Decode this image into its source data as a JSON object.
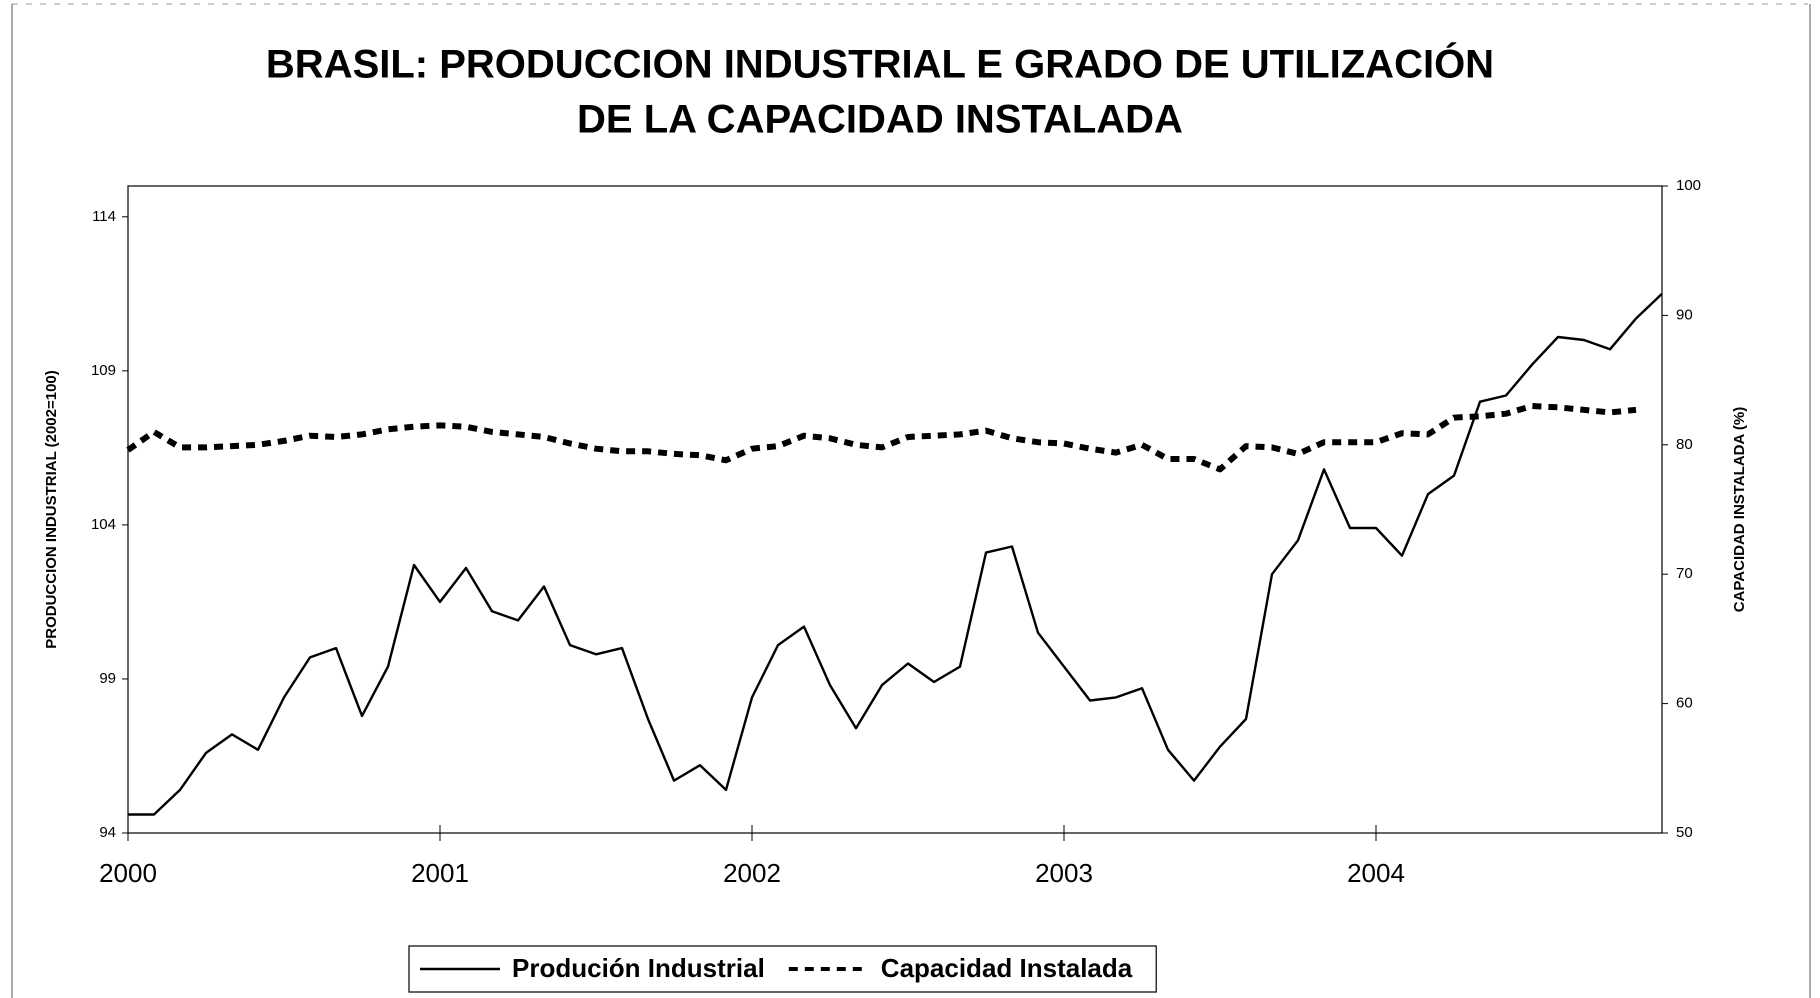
{
  "chart_data": {
    "type": "line",
    "title": [
      "BRASIL: PRODUCCION INDUSTRIAL E GRADO DE  UTILIZACIÓN",
      "DE LA CAPACIDAD INSTALADA"
    ],
    "ylabel": "PRODUCCION INDUSTRIAL (2002=100)",
    "y2label": "CAPACIDAD INSTALADA (%)",
    "categories": [
      "2000",
      null,
      null,
      null,
      null,
      null,
      null,
      null,
      null,
      null,
      null,
      null,
      "2001",
      null,
      null,
      null,
      null,
      null,
      null,
      null,
      null,
      null,
      null,
      null,
      "2002",
      null,
      null,
      null,
      null,
      null,
      null,
      null,
      null,
      null,
      null,
      null,
      "2003",
      null,
      null,
      null,
      null,
      null,
      null,
      null,
      null,
      null,
      null,
      null,
      "2004",
      null,
      null,
      null,
      null,
      null,
      null,
      null,
      null,
      null,
      null,
      null
    ],
    "series": [
      {
        "name": "Produción Industrial",
        "color": "#000000",
        "dash": "solid",
        "values": [
          94.6,
          94.6,
          95.4,
          96.6,
          97.2,
          96.7,
          98.4,
          99.7,
          100.0,
          97.8,
          99.4,
          102.7,
          101.5,
          102.6,
          101.2,
          100.9,
          102.0,
          100.1,
          99.8,
          100.0,
          97.7,
          95.7,
          96.2,
          95.4,
          98.4,
          100.1,
          100.7,
          98.8,
          97.4,
          98.8,
          99.5,
          98.9,
          99.4,
          103.1,
          103.3,
          100.5,
          99.4,
          98.3,
          98.4,
          98.7,
          96.7,
          95.7,
          96.8,
          97.7,
          102.4,
          103.5,
          105.8,
          103.9,
          103.9,
          103.0,
          105.0,
          105.6,
          108.0,
          108.2,
          109.2,
          110.1,
          110.0,
          109.7,
          110.7,
          111.5
        ]
      },
      {
        "name": "Capacidad Instalada",
        "color": "#000000",
        "dash": "dashed",
        "axis": "y2",
        "values": [
          79.6,
          81.0,
          79.8,
          79.8,
          79.9,
          80.0,
          80.3,
          80.7,
          80.6,
          80.8,
          81.2,
          81.4,
          81.5,
          81.4,
          81.0,
          80.8,
          80.6,
          80.1,
          79.7,
          79.5,
          79.5,
          79.3,
          79.2,
          78.8,
          79.7,
          79.9,
          80.7,
          80.5,
          80.0,
          79.8,
          80.6,
          80.7,
          80.8,
          81.1,
          80.5,
          80.2,
          80.1,
          79.7,
          79.4,
          80.0,
          78.9,
          78.9,
          78.1,
          79.9,
          79.8,
          79.3,
          80.2,
          80.2,
          80.2,
          80.9,
          80.8,
          82.1,
          82.2,
          82.4,
          83.0,
          82.9,
          82.7,
          82.5,
          82.7,
          null
        ]
      }
    ],
    "ylim": [
      94,
      115
    ],
    "yticks": [
      94,
      99,
      104,
      109,
      114
    ],
    "y2lim": [
      50,
      100
    ],
    "y2ticks": [
      50,
      60,
      70,
      80,
      90,
      100
    ],
    "grid": false,
    "legend": "bottom"
  }
}
